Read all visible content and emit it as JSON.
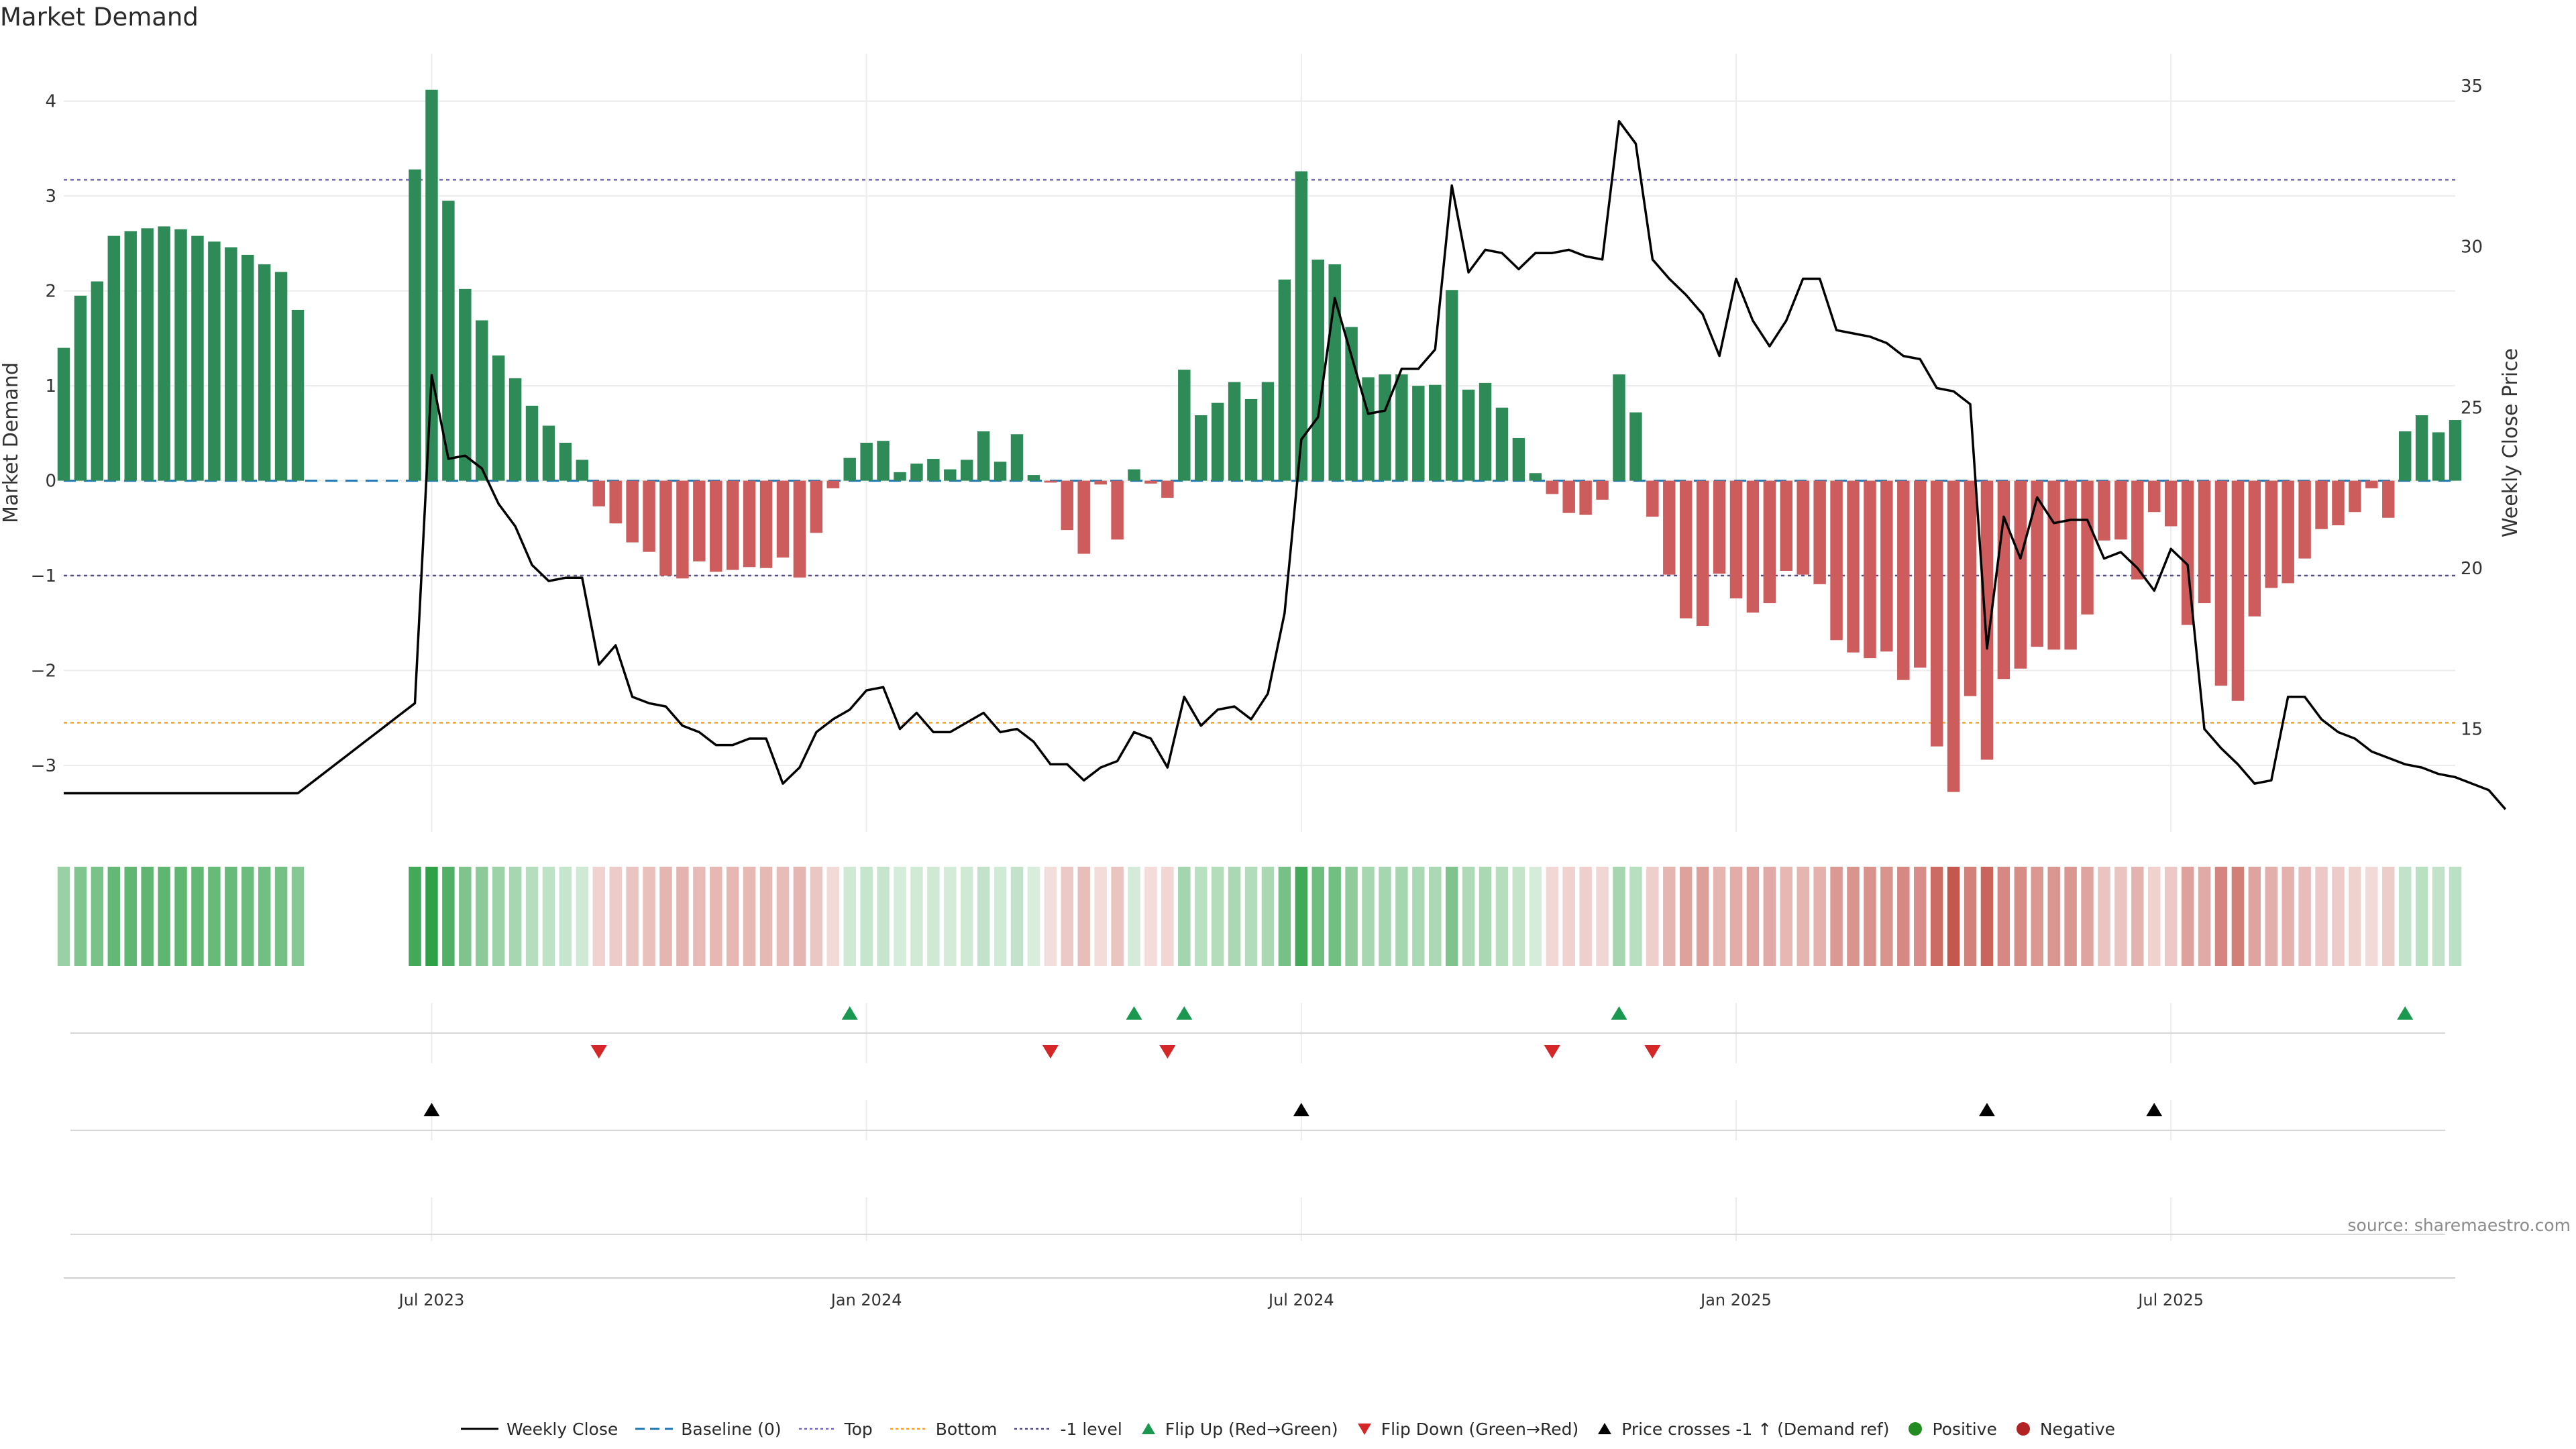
{
  "title": "Market Demand",
  "source": "source: sharemaestro.com",
  "colors": {
    "positive": "#2e8b57",
    "negative": "#cd5c5c",
    "price": "#000000",
    "baseline": "#1f77b4",
    "top": "#7b68c8",
    "bottom": "#ff9f1c",
    "minus1": "#554d8a",
    "flip_up": "#1a9850",
    "flip_down": "#d62728",
    "cross": "#000000",
    "dot_pos": "#228b22",
    "dot_neg": "#b22222"
  },
  "legend": [
    {
      "key": "price",
      "label": "Weekly Close"
    },
    {
      "key": "baseline",
      "label": "Baseline (0)"
    },
    {
      "key": "top",
      "label": "Top"
    },
    {
      "key": "bottom",
      "label": "Bottom"
    },
    {
      "key": "minus1",
      "label": "-1 level"
    },
    {
      "key": "flip_up",
      "label": "Flip Up (Red→Green)"
    },
    {
      "key": "flip_down",
      "label": "Flip Down (Green→Red)"
    },
    {
      "key": "cross",
      "label": "Price crosses -1 ↑ (Demand ref)"
    },
    {
      "key": "dot_pos",
      "label": "Positive"
    },
    {
      "key": "dot_neg",
      "label": "Negative"
    }
  ],
  "chart_data": {
    "type": "bar",
    "title": "Market Demand",
    "ylabel": "Market Demand",
    "y2label": "Weekly Close Price",
    "ylim": [
      -3.7,
      4.5
    ],
    "y2lim": [
      11.8,
      36.0
    ],
    "yticks": [
      4,
      3,
      2,
      1,
      0,
      -1,
      -2,
      -3
    ],
    "yticks_labels": [
      "4",
      "3",
      "2",
      "1",
      "0",
      "−1",
      "−2",
      "−3"
    ],
    "y2ticks": [
      35,
      30,
      25,
      20,
      15
    ],
    "y2ticks_labels": [
      "35",
      "30",
      "25",
      "20",
      "15"
    ],
    "xticks": [
      {
        "index": 22,
        "label": "Jul 2023"
      },
      {
        "index": 48,
        "label": "Jan 2024"
      },
      {
        "index": 74,
        "label": "Jul 2024"
      },
      {
        "index": 100,
        "label": "Jan 2025"
      },
      {
        "index": 126,
        "label": "Jul 2025"
      }
    ],
    "levels": {
      "top": 3.17,
      "bottom": -2.55,
      "baseline": 0,
      "minus1": -1
    },
    "demand": [
      1.4,
      1.95,
      2.1,
      2.58,
      2.63,
      2.66,
      2.68,
      2.65,
      2.58,
      2.52,
      2.46,
      2.38,
      2.28,
      2.2,
      1.8,
      null,
      null,
      null,
      null,
      null,
      null,
      3.28,
      4.12,
      2.95,
      2.02,
      1.69,
      1.32,
      1.08,
      0.79,
      0.58,
      0.4,
      0.22,
      -0.27,
      -0.45,
      -0.65,
      -0.75,
      -1.0,
      -1.03,
      -0.85,
      -0.96,
      -0.94,
      -0.91,
      -0.92,
      -0.81,
      -1.02,
      -0.55,
      -0.08,
      0.24,
      0.4,
      0.42,
      0.09,
      0.18,
      0.23,
      0.12,
      0.22,
      0.52,
      0.2,
      0.49,
      0.06,
      -0.02,
      -0.52,
      -0.77,
      -0.04,
      -0.62,
      0.12,
      -0.03,
      -0.18,
      1.17,
      0.69,
      0.82,
      1.04,
      0.86,
      1.04,
      2.12,
      3.26,
      2.33,
      2.28,
      1.62,
      1.09,
      1.12,
      1.12,
      1.0,
      1.01,
      2.01,
      0.96,
      1.03,
      0.77,
      0.45,
      0.08,
      -0.14,
      -0.34,
      -0.36,
      -0.2,
      1.12,
      0.72,
      -0.38,
      -0.99,
      -1.45,
      -1.53,
      -0.98,
      -1.24,
      -1.39,
      -1.29,
      -0.95,
      -0.99,
      -1.09,
      -1.68,
      -1.81,
      -1.87,
      -1.8,
      -2.1,
      -1.97,
      -2.8,
      -3.28,
      -2.27,
      -2.94,
      -2.09,
      -1.98,
      -1.75,
      -1.78,
      -1.78,
      -1.41,
      -0.63,
      -0.62,
      -1.04,
      -0.33,
      -0.48,
      -1.52,
      -1.29,
      -2.16,
      -2.32,
      -1.43,
      -1.13,
      -1.08,
      -0.82,
      -0.51,
      -0.47,
      -0.33,
      -0.08,
      -0.39,
      0.52,
      0.69,
      0.51,
      0.64
    ],
    "price": [
      13.0,
      13.0,
      13.0,
      13.0,
      13.0,
      13.0,
      13.0,
      13.0,
      13.0,
      13.0,
      13.0,
      13.0,
      13.0,
      13.0,
      13.0,
      13.4,
      13.8,
      14.2,
      14.6,
      15.0,
      15.4,
      15.8,
      26.0,
      23.4,
      23.5,
      23.1,
      22.0,
      21.3,
      20.1,
      19.6,
      19.7,
      19.7,
      17.0,
      17.6,
      16.0,
      15.8,
      15.7,
      15.1,
      14.9,
      14.5,
      14.5,
      14.7,
      14.7,
      13.3,
      13.8,
      14.9,
      15.3,
      15.6,
      16.2,
      16.3,
      15.0,
      15.5,
      14.9,
      14.9,
      15.2,
      15.5,
      14.9,
      15.0,
      14.6,
      13.9,
      13.9,
      13.4,
      13.8,
      14.0,
      14.9,
      14.7,
      13.8,
      16.0,
      15.1,
      15.6,
      15.7,
      15.3,
      16.1,
      18.6,
      24.0,
      24.7,
      28.4,
      26.6,
      24.8,
      24.9,
      26.2,
      26.2,
      26.8,
      31.9,
      29.2,
      29.9,
      29.8,
      29.3,
      29.8,
      29.8,
      29.9,
      29.7,
      29.6,
      33.9,
      33.2,
      29.6,
      29.0,
      28.5,
      27.9,
      26.6,
      29.0,
      27.7,
      26.9,
      27.7,
      29.0,
      29.0,
      27.4,
      27.3,
      27.2,
      27.0,
      26.6,
      26.5,
      25.6,
      25.5,
      25.1,
      17.5,
      21.6,
      20.3,
      22.2,
      21.4,
      21.5,
      21.5,
      20.3,
      20.5,
      20.0,
      19.3,
      20.6,
      20.1,
      15.0,
      14.4,
      13.9,
      13.3,
      13.4,
      16.0,
      16.0,
      15.3,
      14.9,
      14.7,
      14.3,
      14.1,
      13.9,
      13.8,
      13.6,
      13.5,
      13.3,
      13.1,
      12.5
    ],
    "strip_intensity_note": "heat strip mirrors demand sign and magnitude",
    "flip_up_idx": [
      47,
      64,
      67,
      93,
      140
    ],
    "flip_down_idx": [
      32,
      59,
      66,
      89,
      95
    ],
    "cross_idx": [
      22,
      74,
      115,
      125
    ]
  }
}
